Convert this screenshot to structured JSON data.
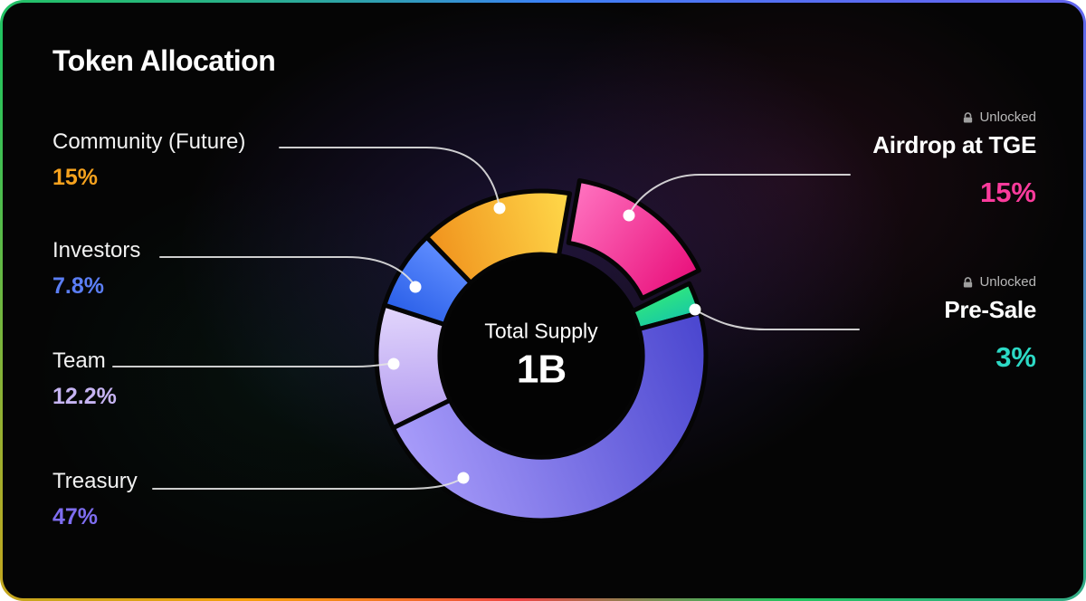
{
  "title": "Token Allocation",
  "center": {
    "label": "Total Supply",
    "value": "1B"
  },
  "chart_data": {
    "type": "pie",
    "donut": true,
    "title": "Token Allocation",
    "center_label": "Total Supply",
    "center_value": "1B",
    "units": "%",
    "total": 100,
    "legend_position": "sides",
    "segments": [
      {
        "name": "Airdrop at TGE",
        "value": 15,
        "display": "15%",
        "status": "Unlocked",
        "exploded": true,
        "gradient": [
          "#ff73c0",
          "#e9117c"
        ],
        "label_color": "#fb3b9c"
      },
      {
        "name": "Pre-Sale",
        "value": 3,
        "display": "3%",
        "status": "Unlocked",
        "exploded": false,
        "gradient": [
          "#2fe57f",
          "#17c9a5"
        ],
        "label_color": "#2cd9c5"
      },
      {
        "name": "Treasury",
        "value": 47,
        "display": "47%",
        "exploded": false,
        "gradient": [
          "#4a46cf",
          "#a89cfa"
        ],
        "label_color": "#7e6df0"
      },
      {
        "name": "Team",
        "value": 12.2,
        "display": "12.2%",
        "exploded": false,
        "gradient": [
          "#b29af0",
          "#e3d7fc"
        ],
        "label_color": "#c6b4f2"
      },
      {
        "name": "Investors",
        "value": 7.8,
        "display": "7.8%",
        "exploded": false,
        "gradient": [
          "#2a5fe8",
          "#5f8dff"
        ],
        "label_color": "#5b7ef5"
      },
      {
        "name": "Community (Future)",
        "value": 15,
        "display": "15%",
        "exploded": false,
        "gradient": [
          "#f0921d",
          "#ffd94a"
        ],
        "label_color": "#f6a21e"
      }
    ]
  }
}
